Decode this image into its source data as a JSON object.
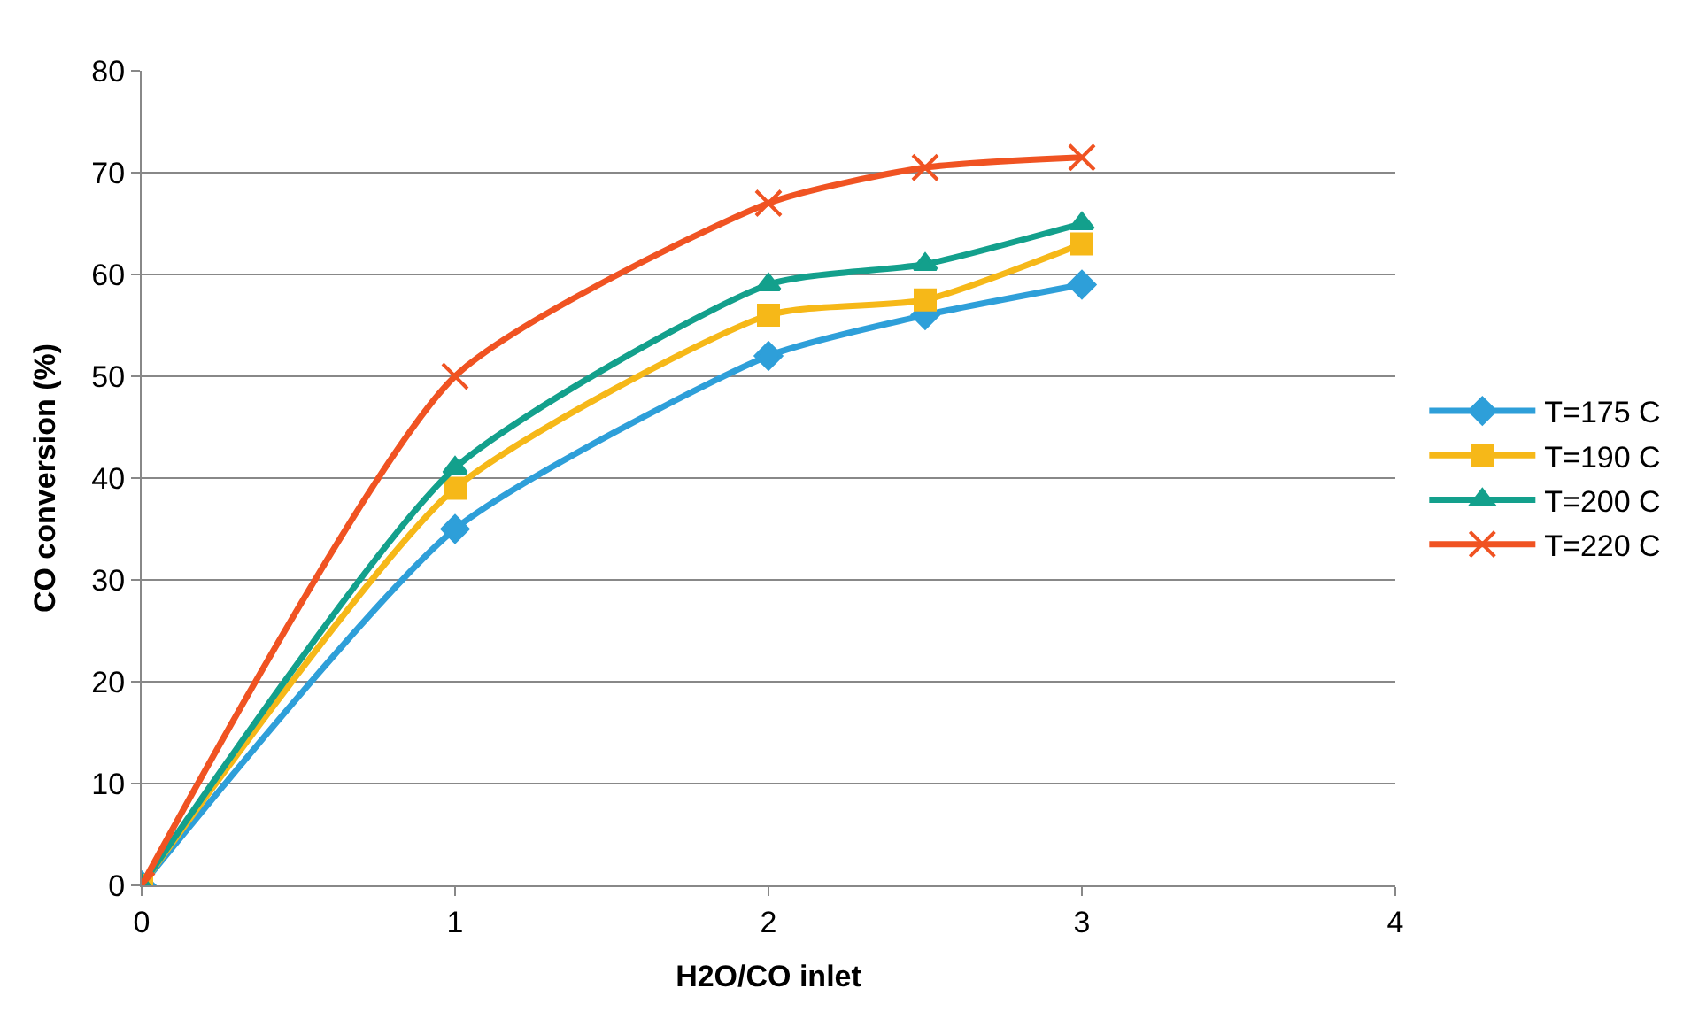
{
  "chart_data": {
    "type": "line",
    "xlabel": "H2O/CO inlet",
    "ylabel": "CO conversion (%)",
    "x": [
      0,
      1,
      2,
      2.5,
      3
    ],
    "series": [
      {
        "name": "T=175 C",
        "color": "#2e9fd9",
        "marker": "diamond",
        "values": [
          0,
          35,
          52,
          56,
          59
        ]
      },
      {
        "name": "T=190 C",
        "color": "#f6b818",
        "marker": "square",
        "values": [
          0,
          39,
          56,
          57.5,
          63
        ]
      },
      {
        "name": "T=200 C",
        "color": "#13a08c",
        "marker": "triangle",
        "values": [
          0,
          41,
          59,
          61,
          65
        ]
      },
      {
        "name": "T=220 C",
        "color": "#f05322",
        "marker": "cross",
        "values": [
          0,
          50,
          67,
          70.5,
          71.5
        ]
      }
    ],
    "xlim": [
      0,
      4
    ],
    "xticks": [
      0,
      1,
      2,
      3,
      4
    ],
    "ylim": [
      0,
      80
    ],
    "yticks": [
      0,
      10,
      20,
      30,
      40,
      50,
      60,
      70,
      80
    ],
    "grid": "y",
    "legend": "right",
    "line_style": "solid"
  }
}
